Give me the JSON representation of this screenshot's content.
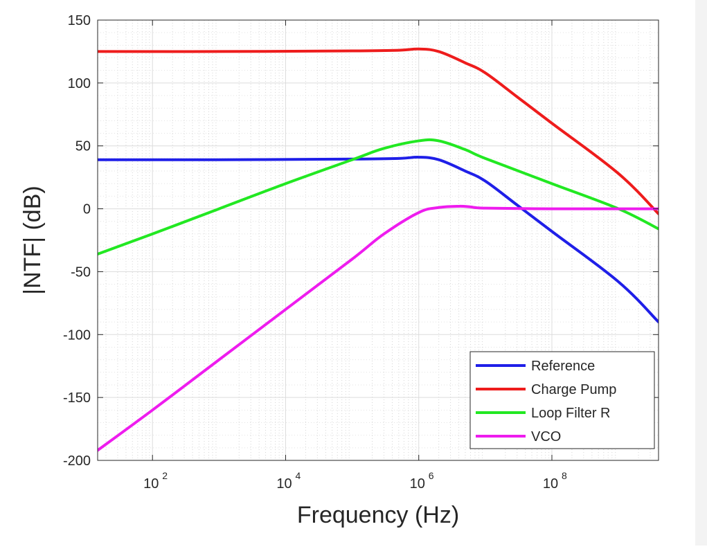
{
  "chart_data": {
    "type": "line",
    "xscale": "log",
    "xlim": [
      15,
      4000000000
    ],
    "ylim": [
      -200,
      150
    ],
    "grid": true,
    "minor_grid": true,
    "legend_position": "bottom-right",
    "title": "",
    "xlabel": "Frequency (Hz)",
    "ylabel": "|NTF| (dB)",
    "xticks": [
      {
        "base": "10",
        "exp": "2",
        "value": 100
      },
      {
        "base": "10",
        "exp": "4",
        "value": 10000
      },
      {
        "base": "10",
        "exp": "6",
        "value": 1000000
      },
      {
        "base": "10",
        "exp": "8",
        "value": 100000000
      }
    ],
    "yticks": [
      {
        "label": "150",
        "value": 150
      },
      {
        "label": "100",
        "value": 100
      },
      {
        "label": "50",
        "value": 50
      },
      {
        "label": "0",
        "value": 0
      },
      {
        "label": "-50",
        "value": -50
      },
      {
        "label": "-100",
        "value": -100
      },
      {
        "label": "-150",
        "value": -150
      },
      {
        "label": "-200",
        "value": -200
      }
    ],
    "series": [
      {
        "name": "Reference",
        "color": "#1f1fe8",
        "x": [
          15,
          1000,
          100000,
          500000,
          1000000,
          2000000,
          5000000,
          10000000,
          30000000,
          100000000,
          1000000000,
          4000000000
        ],
        "y": [
          39,
          39,
          39.5,
          40,
          41,
          39,
          30,
          22,
          3,
          -18,
          -58,
          -90
        ]
      },
      {
        "name": "Charge Pump",
        "color": "#ee1c1c",
        "x": [
          15,
          1000,
          100000,
          500000,
          1000000,
          2000000,
          5000000,
          10000000,
          30000000,
          100000000,
          1000000000,
          4000000000
        ],
        "y": [
          125,
          125,
          125.5,
          126,
          127,
          125,
          116,
          108,
          89,
          68,
          28,
          -4
        ]
      },
      {
        "name": "Loop Filter R",
        "color": "#22e822",
        "x": [
          15,
          100,
          1000,
          10000,
          100000,
          300000,
          1000000,
          2000000,
          5000000,
          10000000,
          100000000,
          1000000000,
          4000000000
        ],
        "y": [
          -36,
          -20,
          0,
          20,
          39,
          48,
          54,
          54,
          47,
          40,
          20,
          0,
          -16
        ]
      },
      {
        "name": "VCO",
        "color": "#ee1cee",
        "x": [
          15,
          100,
          1000,
          10000,
          100000,
          300000,
          1000000,
          2000000,
          4000000,
          6000000,
          10000000,
          100000000,
          1000000000,
          4000000000
        ],
        "y": [
          -192,
          -160,
          -120,
          -80,
          -40,
          -20,
          -3,
          1,
          2,
          1.5,
          0.5,
          0,
          0,
          0
        ]
      }
    ]
  }
}
